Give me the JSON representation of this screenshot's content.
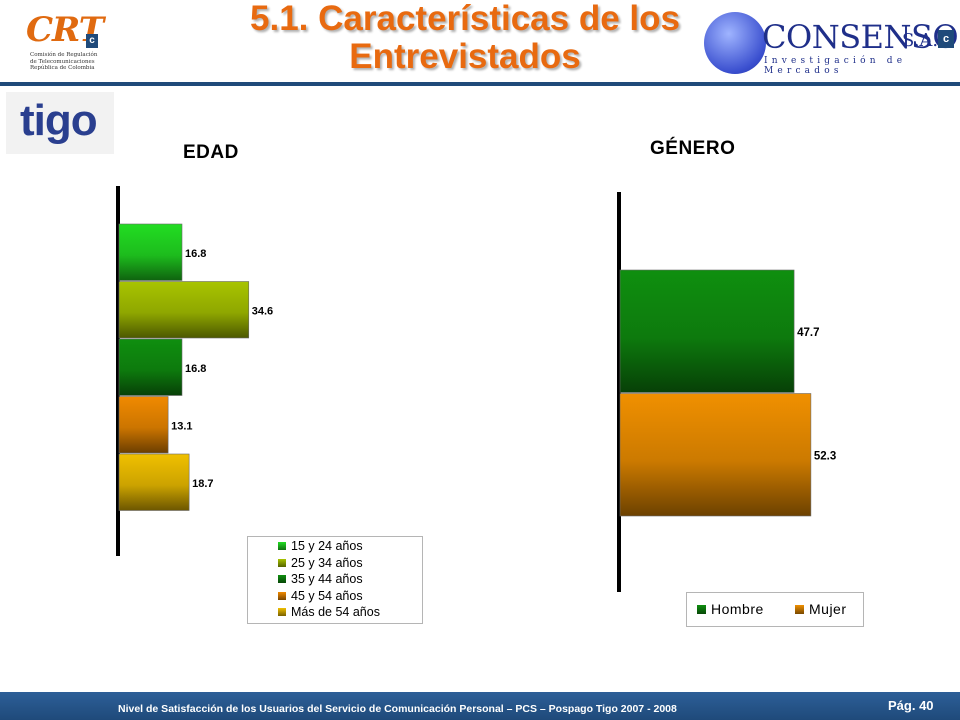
{
  "slide": {
    "title_line1": "5.1. Características de los",
    "title_line2": "Entrevistados"
  },
  "logos": {
    "crt": {
      "text": "CRT",
      "badge": "c",
      "sub_line1": "Comisión de Regulación",
      "sub_line2": "de Telecomunicaciones",
      "sub_line3": "República de Colombia"
    },
    "consenso": {
      "text": "CONSENSO",
      "suffix": "S.A.",
      "tagline": "Investigación de Mercados",
      "badge": "c"
    },
    "tigo": {
      "text": "tigo"
    }
  },
  "chart_data": [
    {
      "type": "bar",
      "orientation": "horizontal",
      "title": "EDAD",
      "categories": [
        "15 y 24 años",
        "25 y 34 años",
        "35 y 44 años",
        "45 y 54 años",
        "Más de 54 años"
      ],
      "values": [
        16.8,
        34.6,
        16.8,
        13.1,
        18.7
      ],
      "colors": [
        "#22dd22",
        "#a8c400",
        "#0f8f0f",
        "#f08a00",
        "#f0c000"
      ],
      "xlim": [
        0,
        100
      ],
      "grid": false,
      "legend": "bottom-right"
    },
    {
      "type": "bar",
      "orientation": "horizontal",
      "title": "GÉNERO",
      "categories": [
        "Hombre",
        "Mujer"
      ],
      "values": [
        47.7,
        52.3
      ],
      "colors": [
        "#0f8f0f",
        "#f09000"
      ],
      "xlim": [
        0,
        100
      ],
      "grid": false,
      "legend": "bottom-right"
    }
  ],
  "footer": {
    "text": "Nivel de Satisfacción de los Usuarios del Servicio de Comunicación Personal – PCS – Pospago Tigo 2007 - 2008",
    "page": "Pág. 40"
  }
}
